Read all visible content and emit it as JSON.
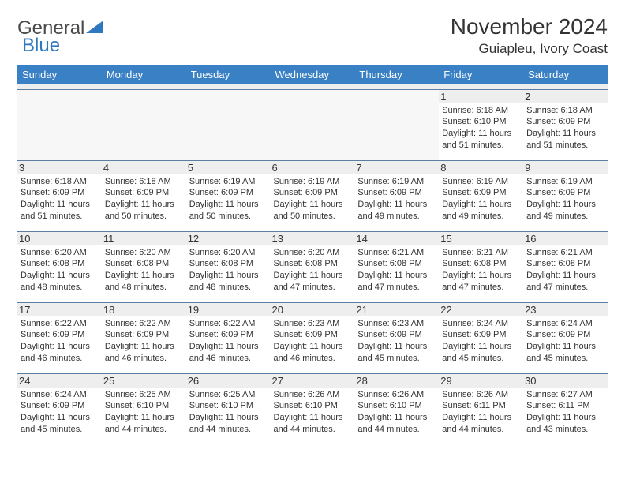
{
  "logo": {
    "word1": "General",
    "word2": "Blue"
  },
  "title": "November 2024",
  "location": "Guiapleu, Ivory Coast",
  "colors": {
    "header_bg": "#3a80c4",
    "header_text": "#ffffff",
    "logo_blue": "#2f78bf",
    "cell_border": "#5a7fa3",
    "daynum_bg": "#eeeeee"
  },
  "weekdays": [
    "Sunday",
    "Monday",
    "Tuesday",
    "Wednesday",
    "Thursday",
    "Friday",
    "Saturday"
  ],
  "weeks": [
    [
      null,
      null,
      null,
      null,
      null,
      {
        "n": "1",
        "sr": "6:18 AM",
        "ss": "6:10 PM",
        "dl": "11 hours and 51 minutes."
      },
      {
        "n": "2",
        "sr": "6:18 AM",
        "ss": "6:09 PM",
        "dl": "11 hours and 51 minutes."
      }
    ],
    [
      {
        "n": "3",
        "sr": "6:18 AM",
        "ss": "6:09 PM",
        "dl": "11 hours and 51 minutes."
      },
      {
        "n": "4",
        "sr": "6:18 AM",
        "ss": "6:09 PM",
        "dl": "11 hours and 50 minutes."
      },
      {
        "n": "5",
        "sr": "6:19 AM",
        "ss": "6:09 PM",
        "dl": "11 hours and 50 minutes."
      },
      {
        "n": "6",
        "sr": "6:19 AM",
        "ss": "6:09 PM",
        "dl": "11 hours and 50 minutes."
      },
      {
        "n": "7",
        "sr": "6:19 AM",
        "ss": "6:09 PM",
        "dl": "11 hours and 49 minutes."
      },
      {
        "n": "8",
        "sr": "6:19 AM",
        "ss": "6:09 PM",
        "dl": "11 hours and 49 minutes."
      },
      {
        "n": "9",
        "sr": "6:19 AM",
        "ss": "6:09 PM",
        "dl": "11 hours and 49 minutes."
      }
    ],
    [
      {
        "n": "10",
        "sr": "6:20 AM",
        "ss": "6:08 PM",
        "dl": "11 hours and 48 minutes."
      },
      {
        "n": "11",
        "sr": "6:20 AM",
        "ss": "6:08 PM",
        "dl": "11 hours and 48 minutes."
      },
      {
        "n": "12",
        "sr": "6:20 AM",
        "ss": "6:08 PM",
        "dl": "11 hours and 48 minutes."
      },
      {
        "n": "13",
        "sr": "6:20 AM",
        "ss": "6:08 PM",
        "dl": "11 hours and 47 minutes."
      },
      {
        "n": "14",
        "sr": "6:21 AM",
        "ss": "6:08 PM",
        "dl": "11 hours and 47 minutes."
      },
      {
        "n": "15",
        "sr": "6:21 AM",
        "ss": "6:08 PM",
        "dl": "11 hours and 47 minutes."
      },
      {
        "n": "16",
        "sr": "6:21 AM",
        "ss": "6:08 PM",
        "dl": "11 hours and 47 minutes."
      }
    ],
    [
      {
        "n": "17",
        "sr": "6:22 AM",
        "ss": "6:09 PM",
        "dl": "11 hours and 46 minutes."
      },
      {
        "n": "18",
        "sr": "6:22 AM",
        "ss": "6:09 PM",
        "dl": "11 hours and 46 minutes."
      },
      {
        "n": "19",
        "sr": "6:22 AM",
        "ss": "6:09 PM",
        "dl": "11 hours and 46 minutes."
      },
      {
        "n": "20",
        "sr": "6:23 AM",
        "ss": "6:09 PM",
        "dl": "11 hours and 46 minutes."
      },
      {
        "n": "21",
        "sr": "6:23 AM",
        "ss": "6:09 PM",
        "dl": "11 hours and 45 minutes."
      },
      {
        "n": "22",
        "sr": "6:24 AM",
        "ss": "6:09 PM",
        "dl": "11 hours and 45 minutes."
      },
      {
        "n": "23",
        "sr": "6:24 AM",
        "ss": "6:09 PM",
        "dl": "11 hours and 45 minutes."
      }
    ],
    [
      {
        "n": "24",
        "sr": "6:24 AM",
        "ss": "6:09 PM",
        "dl": "11 hours and 45 minutes."
      },
      {
        "n": "25",
        "sr": "6:25 AM",
        "ss": "6:10 PM",
        "dl": "11 hours and 44 minutes."
      },
      {
        "n": "26",
        "sr": "6:25 AM",
        "ss": "6:10 PM",
        "dl": "11 hours and 44 minutes."
      },
      {
        "n": "27",
        "sr": "6:26 AM",
        "ss": "6:10 PM",
        "dl": "11 hours and 44 minutes."
      },
      {
        "n": "28",
        "sr": "6:26 AM",
        "ss": "6:10 PM",
        "dl": "11 hours and 44 minutes."
      },
      {
        "n": "29",
        "sr": "6:26 AM",
        "ss": "6:11 PM",
        "dl": "11 hours and 44 minutes."
      },
      {
        "n": "30",
        "sr": "6:27 AM",
        "ss": "6:11 PM",
        "dl": "11 hours and 43 minutes."
      }
    ]
  ],
  "labels": {
    "sunrise": "Sunrise:",
    "sunset": "Sunset:",
    "daylight": "Daylight:"
  }
}
